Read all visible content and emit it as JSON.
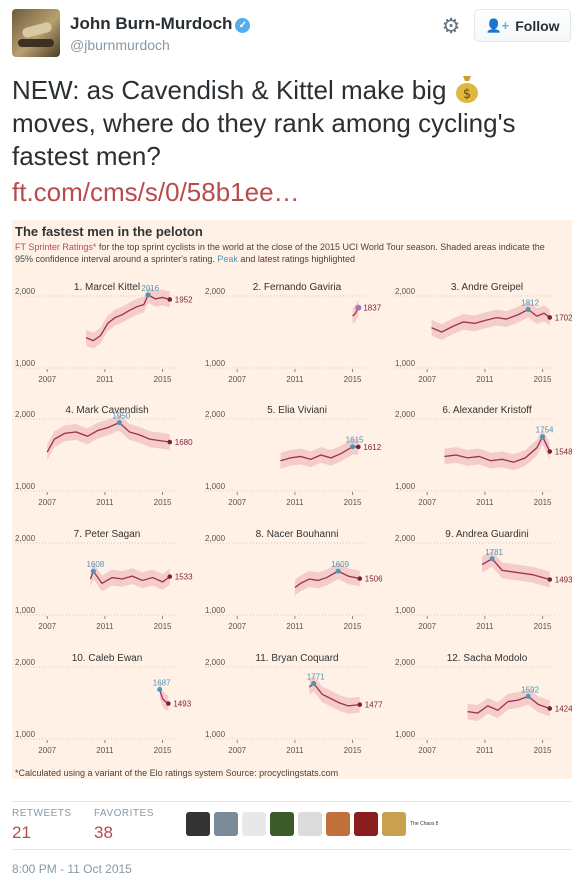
{
  "tweet": {
    "author_name": "John Burn-Murdoch",
    "handle": "@jburnmurdoch",
    "follow_label": "Follow",
    "text": "NEW: as Cavendish & Kittel make big",
    "text_line2": "moves, where do they rank among cycling's",
    "text_line3": "fastest men?",
    "link": "ft.com/cms/s/0/58b1ee…",
    "retweets_label": "RETWEETS",
    "retweets": "21",
    "favorites_label": "FAVORITES",
    "favorites": "38",
    "timestamp": "8:00 PM - 11 Oct 2015",
    "last_avatar_text": "The Chaos Battle",
    "icons": {
      "verified": "verified-badge-icon",
      "gear": "gear-icon",
      "follow": "add-user-icon",
      "money": "money-bag-icon"
    },
    "avatar_colors": [
      "#333333",
      "#7a8a99",
      "#e8e8e8",
      "#3c5a2a",
      "#dcdcdc",
      "#c0703a",
      "#8a1e1e",
      "#c9a050"
    ]
  },
  "card": {
    "title": "The fastest men in the peloton",
    "subtitle_pink": "FT Sprinter Ratings*",
    "subtitle_rest": " for the top sprint cyclists in the world at the close of the 2015 UCI World Tour season. Shaded areas indicate the 95% confidence interval around a sprinter's rating. ",
    "peak_word": "Peak",
    "and_word": " and ",
    "latest_word": "latest",
    "subtitle_end": " ratings highlighted",
    "footnote": "*Calculated using a variant of the Elo ratings system Source: procyclingstats.com",
    "colors": {
      "background": "#fff1e5",
      "band": "#f2c6c6",
      "line": "#9e2f50",
      "peak": "#4e96b8",
      "latest": "#7d1e3e",
      "axis": "#555555"
    }
  },
  "chart_data": [
    {
      "type": "line",
      "title": "1. Marcel Kittel",
      "xticks": [
        "2007",
        "2011",
        "2015"
      ],
      "yticks": [
        "2,000",
        "1,000"
      ],
      "ylim": [
        1000,
        2000
      ],
      "peak": {
        "x": 2014.0,
        "y": 2016,
        "label": "2016"
      },
      "latest": {
        "x": 2015.5,
        "y": 1952,
        "label": "1952"
      },
      "x": [
        2009.7,
        2010.2,
        2010.7,
        2011.2,
        2011.7,
        2012.2,
        2012.7,
        2013.2,
        2013.7,
        2014.0,
        2014.5,
        2015.0,
        2015.5
      ],
      "y": [
        1420,
        1380,
        1450,
        1620,
        1700,
        1740,
        1800,
        1850,
        1880,
        2016,
        1960,
        1980,
        1952
      ]
    },
    {
      "type": "line",
      "title": "2. Fernando Gaviria",
      "xticks": [
        "2007",
        "2011",
        "2015"
      ],
      "yticks": [
        "2,000",
        "1,000"
      ],
      "ylim": [
        1000,
        2000
      ],
      "peak": {
        "x": 2015.4,
        "y": 1837,
        "label": "1837"
      },
      "latest": {
        "x": 2015.4,
        "y": 1837,
        "label": "1837"
      },
      "x": [
        2015.0,
        2015.2,
        2015.4
      ],
      "y": [
        1720,
        1760,
        1837
      ]
    },
    {
      "type": "line",
      "title": "3. Andre Greipel",
      "xticks": [
        "2007",
        "2011",
        "2015"
      ],
      "yticks": [
        "2,000",
        "1,000"
      ],
      "ylim": [
        1000,
        2000
      ],
      "peak": {
        "x": 2014.0,
        "y": 1812,
        "label": "1812"
      },
      "latest": {
        "x": 2015.5,
        "y": 1702,
        "label": "1702"
      },
      "x": [
        2007.3,
        2008.0,
        2008.8,
        2009.5,
        2010.3,
        2011.0,
        2011.8,
        2012.5,
        2013.3,
        2014.0,
        2014.6,
        2015.1,
        2015.5
      ],
      "y": [
        1560,
        1500,
        1580,
        1640,
        1620,
        1660,
        1700,
        1680,
        1740,
        1812,
        1720,
        1760,
        1702
      ]
    },
    {
      "type": "line",
      "title": "4. Mark Cavendish",
      "xticks": [
        "2007",
        "2011",
        "2015"
      ],
      "yticks": [
        "2,000",
        "1,000"
      ],
      "ylim": [
        1000,
        2000
      ],
      "peak": {
        "x": 2012.0,
        "y": 1950,
        "label": "1950"
      },
      "latest": {
        "x": 2015.5,
        "y": 1680,
        "label": "1680"
      },
      "x": [
        2007.0,
        2007.5,
        2008.2,
        2009.0,
        2009.8,
        2010.5,
        2011.2,
        2012.0,
        2012.7,
        2013.4,
        2014.1,
        2014.8,
        2015.5
      ],
      "y": [
        1540,
        1720,
        1800,
        1820,
        1760,
        1840,
        1880,
        1950,
        1820,
        1780,
        1720,
        1700,
        1680
      ]
    },
    {
      "type": "line",
      "title": "5. Elia Viviani",
      "xticks": [
        "2007",
        "2011",
        "2015"
      ],
      "yticks": [
        "2,000",
        "1,000"
      ],
      "ylim": [
        1000,
        2000
      ],
      "peak": {
        "x": 2015.0,
        "y": 1615,
        "label": "1615"
      },
      "latest": {
        "x": 2015.4,
        "y": 1612,
        "label": "1612"
      },
      "x": [
        2010.0,
        2010.7,
        2011.4,
        2012.1,
        2012.8,
        2013.5,
        2014.2,
        2015.0,
        2015.4
      ],
      "y": [
        1420,
        1460,
        1480,
        1440,
        1500,
        1460,
        1520,
        1615,
        1612
      ]
    },
    {
      "type": "line",
      "title": "6. Alexander Kristoff",
      "xticks": [
        "2007",
        "2011",
        "2015"
      ],
      "yticks": [
        "2,000",
        "1,000"
      ],
      "ylim": [
        1000,
        2000
      ],
      "peak": {
        "x": 2015.0,
        "y": 1754,
        "label": "1754"
      },
      "latest": {
        "x": 2015.5,
        "y": 1548,
        "label": "1548"
      },
      "x": [
        2008.2,
        2009.0,
        2009.8,
        2010.6,
        2011.4,
        2012.2,
        2013.0,
        2013.8,
        2014.6,
        2015.0,
        2015.5
      ],
      "y": [
        1480,
        1500,
        1460,
        1480,
        1420,
        1440,
        1400,
        1460,
        1600,
        1754,
        1548
      ]
    },
    {
      "type": "line",
      "title": "7. Peter Sagan",
      "xticks": [
        "2007",
        "2011",
        "2015"
      ],
      "yticks": [
        "2,000",
        "1,000"
      ],
      "ylim": [
        1000,
        2000
      ],
      "peak": {
        "x": 2010.2,
        "y": 1608,
        "label": "1608"
      },
      "latest": {
        "x": 2015.5,
        "y": 1533,
        "label": "1533"
      },
      "x": [
        2010.0,
        2010.2,
        2010.8,
        2011.5,
        2012.2,
        2012.9,
        2013.6,
        2014.3,
        2015.0,
        2015.5
      ],
      "y": [
        1500,
        1608,
        1440,
        1520,
        1500,
        1540,
        1480,
        1520,
        1460,
        1533
      ]
    },
    {
      "type": "line",
      "title": "8. Nacer Bouhanni",
      "xticks": [
        "2007",
        "2011",
        "2015"
      ],
      "yticks": [
        "2,000",
        "1,000"
      ],
      "ylim": [
        1000,
        2000
      ],
      "peak": {
        "x": 2014.0,
        "y": 1609,
        "label": "1609"
      },
      "latest": {
        "x": 2015.5,
        "y": 1506,
        "label": "1506"
      },
      "x": [
        2011.0,
        2011.4,
        2012.0,
        2012.6,
        2013.2,
        2014.0,
        2014.7,
        2015.5
      ],
      "y": [
        1380,
        1440,
        1500,
        1480,
        1520,
        1609,
        1540,
        1506
      ]
    },
    {
      "type": "line",
      "title": "9. Andrea Guardini",
      "xticks": [
        "2007",
        "2011",
        "2015"
      ],
      "yticks": [
        "2,000",
        "1,000"
      ],
      "ylim": [
        1000,
        2000
      ],
      "peak": {
        "x": 2011.5,
        "y": 1781,
        "label": "1781"
      },
      "latest": {
        "x": 2015.5,
        "y": 1493,
        "label": "1493"
      },
      "x": [
        2010.8,
        2011.5,
        2012.2,
        2012.9,
        2013.6,
        2014.3,
        2015.0,
        2015.5
      ],
      "y": [
        1700,
        1781,
        1620,
        1600,
        1580,
        1560,
        1520,
        1493
      ]
    },
    {
      "type": "line",
      "title": "10. Caleb Ewan",
      "xticks": [
        "2007",
        "2011",
        "2015"
      ],
      "yticks": [
        "2,000",
        "1,000"
      ],
      "ylim": [
        1000,
        2000
      ],
      "peak": {
        "x": 2014.8,
        "y": 1687,
        "label": "1687"
      },
      "latest": {
        "x": 2015.4,
        "y": 1493,
        "label": "1493"
      },
      "x": [
        2014.8,
        2015.0,
        2015.2,
        2015.4
      ],
      "y": [
        1687,
        1560,
        1520,
        1493
      ]
    },
    {
      "type": "line",
      "title": "11. Bryan Coquard",
      "xticks": [
        "2007",
        "2011",
        "2015"
      ],
      "yticks": [
        "2,000",
        "1,000"
      ],
      "ylim": [
        1000,
        2000
      ],
      "peak": {
        "x": 2012.3,
        "y": 1771,
        "label": "1771"
      },
      "latest": {
        "x": 2015.5,
        "y": 1477,
        "label": "1477"
      },
      "x": [
        2012.0,
        2012.3,
        2012.9,
        2013.5,
        2014.1,
        2014.7,
        2015.5
      ],
      "y": [
        1720,
        1771,
        1620,
        1560,
        1500,
        1460,
        1477
      ]
    },
    {
      "type": "line",
      "title": "12. Sacha Modolo",
      "xticks": [
        "2007",
        "2011",
        "2015"
      ],
      "yticks": [
        "2,000",
        "1,000"
      ],
      "ylim": [
        1000,
        2000
      ],
      "peak": {
        "x": 2014.0,
        "y": 1592,
        "label": "1592"
      },
      "latest": {
        "x": 2015.5,
        "y": 1424,
        "label": "1424"
      },
      "x": [
        2009.8,
        2010.5,
        2011.2,
        2011.9,
        2012.6,
        2013.3,
        2014.0,
        2014.7,
        2015.5
      ],
      "y": [
        1380,
        1360,
        1460,
        1400,
        1520,
        1540,
        1592,
        1480,
        1424
      ]
    }
  ]
}
